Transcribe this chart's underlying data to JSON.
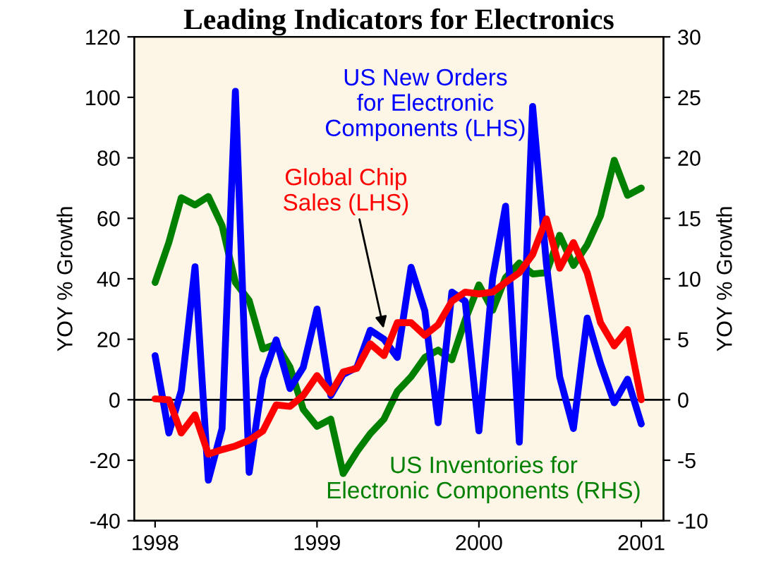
{
  "chart_data": {
    "type": "line",
    "title": "Leading Indicators for Electronics",
    "ylabel": "YOY % Growth",
    "y2label": "YOY % Growth",
    "x": [
      "1998-01",
      "1998-02",
      "1998-03",
      "1998-04",
      "1998-05",
      "1998-06",
      "1998-07",
      "1998-08",
      "1998-09",
      "1998-10",
      "1998-11",
      "1998-12",
      "1999-01",
      "1999-02",
      "1999-03",
      "1999-04",
      "1999-05",
      "1999-06",
      "1999-07",
      "1999-08",
      "1999-09",
      "1999-10",
      "1999-11",
      "1999-12",
      "2000-01",
      "2000-02",
      "2000-03",
      "2000-04",
      "2000-05",
      "2000-06",
      "2000-07",
      "2000-08",
      "2000-09",
      "2000-10",
      "2000-11",
      "2000-12",
      "2001-01"
    ],
    "series": [
      {
        "color": "#0000ff",
        "values": [
          14.6,
          -11,
          3,
          44,
          -26.6,
          -9.5,
          102,
          -24,
          7,
          19.8,
          3.7,
          10.7,
          30,
          1.4,
          8.4,
          10.7,
          23,
          20,
          14,
          43.8,
          29.4,
          -7.6,
          35.6,
          32.6,
          -10.3,
          40.3,
          64,
          -14,
          97,
          45,
          7.6,
          -9.5,
          27,
          12,
          -1,
          6.8,
          -8
        ]
      },
      {
        "color": "#ff0000",
        "values": [
          0.3,
          0,
          -11,
          -5,
          -18,
          -16.5,
          -15.3,
          -13.4,
          -10.3,
          -1.7,
          -2.2,
          1.4,
          8,
          2.2,
          9.2,
          10.4,
          18.5,
          14.6,
          25.5,
          25.5,
          21.3,
          24.8,
          32.6,
          35.6,
          35,
          35.6,
          38.8,
          42,
          48,
          59.8,
          43.5,
          52,
          42,
          25.5,
          17.8,
          23.2,
          0
        ]
      },
      {
        "color": "#008000",
        "axis": "y2",
        "values": [
          9.7,
          13,
          16.7,
          16.1,
          16.8,
          14.4,
          9.7,
          8.2,
          4.2,
          4.6,
          2.7,
          -0.8,
          -2.2,
          -1.6,
          -6.1,
          -4.3,
          -2.8,
          -1.6,
          0.7,
          1.9,
          3.5,
          4.1,
          3.3,
          6.6,
          9.5,
          7.4,
          10.1,
          11.3,
          10.4,
          10.5,
          13.6,
          11.1,
          12.8,
          15.2,
          19.8,
          16.9,
          17.5
        ]
      }
    ],
    "annotations": [
      "US New Orders\nfor Electronic\nComponents (LHS)",
      {
        "text": "Global Chip\nSales (LHS)",
        "x": "1999-06",
        "y": 23
      },
      "US Inventories for\nElectronic Components (RHS)"
    ],
    "xlim": [
      "1997-11-15",
      "2001-02-20"
    ],
    "xticks": [
      {
        "value": "1998-01-01",
        "label": "1998"
      },
      {
        "value": "1999-01-01",
        "label": "1999"
      },
      {
        "value": "2000-01-01",
        "label": "2000"
      },
      {
        "value": "2001-01-01",
        "label": "2001"
      }
    ],
    "ylim": [
      -40,
      120
    ],
    "yticks": [
      -40,
      -20,
      0,
      20,
      40,
      60,
      80,
      100,
      120
    ],
    "y2lim": [
      -10,
      30
    ],
    "y2ticks": [
      -10,
      -5,
      0,
      5,
      10,
      15,
      20,
      25,
      30
    ],
    "ref_lines": [
      {
        "axis": "y",
        "value": 0,
        "color": "#000000"
      }
    ],
    "grid": false,
    "marker": "none",
    "line_style": "solid"
  }
}
